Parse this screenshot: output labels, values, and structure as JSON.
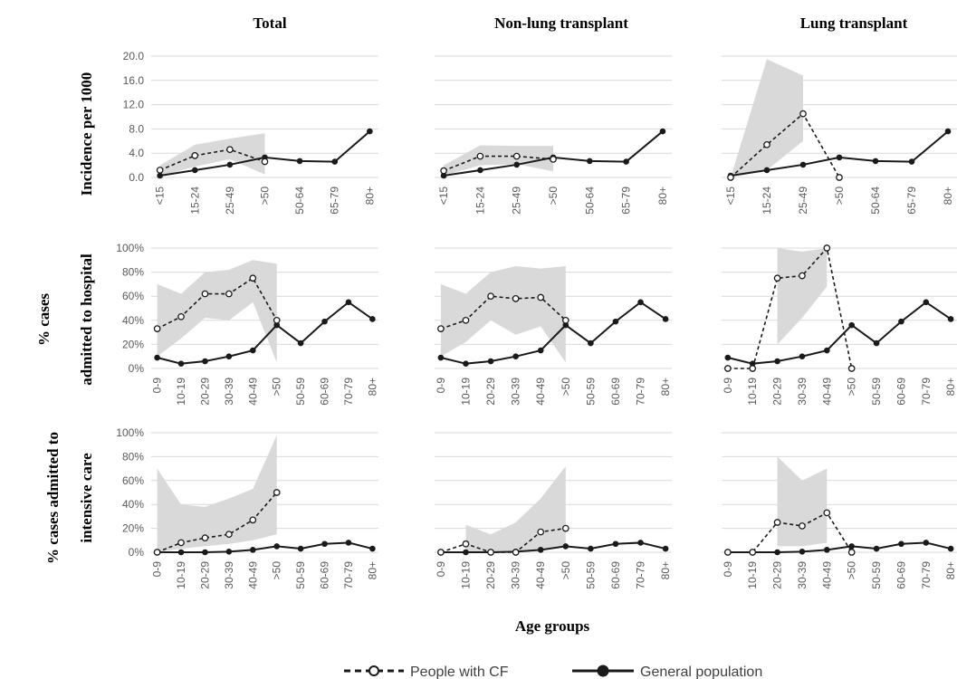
{
  "colors": {
    "ci_band": "#d9d9d9",
    "line": "#1a1a1a",
    "grid": "#d9d9d9",
    "tick_text": "#595959"
  },
  "column_titles": [
    "Total",
    "Non-lung transplant",
    "Lung transplant"
  ],
  "row_titles": [
    {
      "outer": "",
      "inner": "Incidence per 1000"
    },
    {
      "outer": "% cases",
      "inner": "admitted to hospital"
    },
    {
      "outer": "% cases admitted to",
      "inner": "intensive care"
    }
  ],
  "xlabel": "Age groups",
  "legend": {
    "cf_label": "People with CF",
    "gp_label": "General population"
  },
  "chart_data": [
    {
      "type": "line",
      "row": 0,
      "col": 0,
      "x_ticks": [
        "<15",
        "15-24",
        "25-49",
        ">50",
        "50-64",
        "65-79",
        "80+"
      ],
      "y_ticks": [
        "20.0",
        "16.0",
        "12.0",
        "8.0",
        "4.0",
        "0.0"
      ],
      "ylim": [
        0,
        20
      ],
      "series": [
        {
          "name": "People with CF",
          "values": [
            1.2,
            3.6,
            4.6,
            2.6,
            null,
            null,
            null
          ],
          "ci_low": [
            0.2,
            1.8,
            3.0,
            0.5
          ],
          "ci_high": [
            2.0,
            5.4,
            6.4,
            7.3
          ]
        },
        {
          "name": "General population",
          "values": [
            0.3,
            1.2,
            2.1,
            3.3,
            2.7,
            2.6,
            7.6
          ]
        }
      ]
    },
    {
      "type": "line",
      "row": 0,
      "col": 1,
      "x_ticks": [
        "<15",
        "15-24",
        "25-49",
        ">50",
        "50-64",
        "65-79",
        "80+"
      ],
      "y_ticks": [],
      "ylim": [
        0,
        20
      ],
      "series": [
        {
          "name": "People with CF",
          "values": [
            1.1,
            3.5,
            3.5,
            3.0,
            null,
            null,
            null
          ],
          "ci_low": [
            0.3,
            2.0,
            2.2,
            1.0
          ],
          "ci_high": [
            2.0,
            5.3,
            5.2,
            5.2
          ]
        },
        {
          "name": "General population",
          "values": [
            0.3,
            1.2,
            2.1,
            3.3,
            2.7,
            2.6,
            7.6
          ]
        }
      ]
    },
    {
      "type": "line",
      "row": 0,
      "col": 2,
      "x_ticks": [
        "<15",
        "15-24",
        "25-49",
        ">50",
        "50-64",
        "65-79",
        "80+"
      ],
      "y_ticks": [],
      "ylim": [
        0,
        20
      ],
      "series": [
        {
          "name": "People with CF",
          "values": [
            0.0,
            5.4,
            10.5,
            0.0,
            null,
            null,
            null
          ],
          "ci_low": [
            0.0,
            1.2,
            6.0
          ],
          "ci_high": [
            0.0,
            19.5,
            16.8
          ]
        },
        {
          "name": "General population",
          "values": [
            0.3,
            1.2,
            2.1,
            3.3,
            2.7,
            2.6,
            7.6
          ]
        }
      ]
    },
    {
      "type": "line",
      "row": 1,
      "col": 0,
      "x_ticks": [
        "0-9",
        "10-19",
        "20-29",
        "30-39",
        "40-49",
        ">50",
        "50-59",
        "60-69",
        "70-79",
        "80+"
      ],
      "y_ticks": [
        "100%",
        "80%",
        "60%",
        "40%",
        "20%",
        "0%"
      ],
      "ylim": [
        0,
        100
      ],
      "series": [
        {
          "name": "People with CF",
          "values": [
            33,
            43,
            62,
            62,
            75,
            40,
            null,
            null,
            null,
            null
          ],
          "ci_low": [
            10,
            25,
            42,
            40,
            55,
            5
          ],
          "ci_high": [
            70,
            62,
            80,
            82,
            90,
            87
          ]
        },
        {
          "name": "General population",
          "values": [
            9,
            4,
            6,
            10,
            15,
            36,
            21,
            39,
            55,
            41
          ]
        }
      ]
    },
    {
      "type": "line",
      "row": 1,
      "col": 1,
      "x_ticks": [
        "0-9",
        "10-19",
        "20-29",
        "30-39",
        "40-49",
        ">50",
        "50-59",
        "60-69",
        "70-79",
        "80+"
      ],
      "y_ticks": [],
      "ylim": [
        0,
        100
      ],
      "series": [
        {
          "name": "People with CF",
          "values": [
            33,
            40,
            60,
            58,
            59,
            40,
            null,
            null,
            null,
            null
          ],
          "ci_low": [
            10,
            22,
            40,
            28,
            35,
            5
          ],
          "ci_high": [
            70,
            62,
            80,
            85,
            83,
            85
          ]
        },
        {
          "name": "General population",
          "values": [
            9,
            4,
            6,
            10,
            15,
            36,
            21,
            39,
            55,
            41
          ]
        }
      ]
    },
    {
      "type": "line",
      "row": 1,
      "col": 2,
      "x_ticks": [
        "0-9",
        "10-19",
        "20-29",
        "30-39",
        "40-49",
        ">50",
        "50-59",
        "60-69",
        "70-79",
        "80+"
      ],
      "y_ticks": [],
      "ylim": [
        0,
        100
      ],
      "series": [
        {
          "name": "People with CF",
          "values": [
            0,
            0,
            75,
            77,
            100,
            0,
            null,
            null,
            null,
            null
          ],
          "ci_low": [
            null,
            null,
            20,
            42,
            68,
            null
          ],
          "ci_high": [
            null,
            null,
            100,
            97,
            100,
            null
          ]
        },
        {
          "name": "General population",
          "values": [
            9,
            4,
            6,
            10,
            15,
            36,
            21,
            39,
            55,
            41
          ]
        }
      ]
    },
    {
      "type": "line",
      "row": 2,
      "col": 0,
      "x_ticks": [
        "0-9",
        "10-19",
        "20-29",
        "30-39",
        "40-49",
        ">50",
        "50-59",
        "60-69",
        "70-79",
        "80+"
      ],
      "y_ticks": [
        "100%",
        "80%",
        "60%",
        "40%",
        "20%",
        "0%"
      ],
      "ylim": [
        0,
        100
      ],
      "series": [
        {
          "name": "People with CF",
          "values": [
            0,
            8,
            12,
            15,
            27,
            50,
            null,
            null,
            null,
            null
          ],
          "ci_low": [
            0,
            3,
            5,
            7,
            10,
            15
          ],
          "ci_high": [
            70,
            40,
            38,
            45,
            53,
            98
          ]
        },
        {
          "name": "General population",
          "values": [
            0,
            0,
            0,
            0.5,
            2,
            5,
            3,
            7,
            8,
            3
          ]
        }
      ]
    },
    {
      "type": "line",
      "row": 2,
      "col": 1,
      "x_ticks": [
        "0-9",
        "10-19",
        "20-29",
        "30-39",
        "40-49",
        ">50",
        "50-59",
        "60-69",
        "70-79",
        "80+"
      ],
      "y_ticks": [],
      "ylim": [
        0,
        100
      ],
      "series": [
        {
          "name": "People with CF",
          "values": [
            0,
            7,
            0,
            0,
            17,
            20,
            null,
            null,
            null,
            null
          ],
          "ci_low": [
            null,
            0,
            0,
            0,
            3,
            5
          ],
          "ci_high": [
            null,
            23,
            15,
            25,
            45,
            72
          ]
        },
        {
          "name": "General population",
          "values": [
            0,
            0,
            0,
            0.5,
            2,
            5,
            3,
            7,
            8,
            3
          ]
        }
      ]
    },
    {
      "type": "line",
      "row": 2,
      "col": 2,
      "x_ticks": [
        "0-9",
        "10-19",
        "20-29",
        "30-39",
        "40-49",
        ">50",
        "50-59",
        "60-69",
        "70-79",
        "80+"
      ],
      "y_ticks": [],
      "ylim": [
        0,
        100
      ],
      "series": [
        {
          "name": "People with CF",
          "values": [
            0,
            0,
            25,
            22,
            33,
            0,
            null,
            null,
            null,
            null
          ],
          "ci_low": [
            null,
            null,
            5,
            5,
            8,
            null
          ],
          "ci_high": [
            null,
            null,
            80,
            60,
            70,
            null
          ]
        },
        {
          "name": "General population",
          "values": [
            0,
            0,
            0,
            0.5,
            2,
            5,
            3,
            7,
            8,
            3
          ]
        }
      ]
    }
  ]
}
